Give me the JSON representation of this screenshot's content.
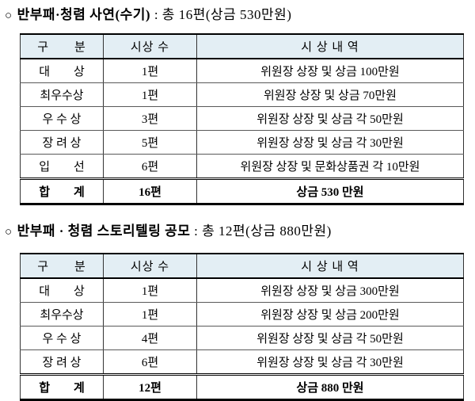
{
  "colors": {
    "header_bg": "#e3eef4",
    "border": "#000000",
    "text": "#000000"
  },
  "sections": [
    {
      "bullet": "○",
      "title_bold": "반부패·청렴 사연(수기)",
      "title_rest": " : 총 16편(상금 530만원)",
      "table": {
        "headers": [
          "구　　분",
          "시상 수",
          "시 상 내 역"
        ],
        "rows": [
          [
            "대　　상",
            "1편",
            "위원장 상장 및 상금 100만원"
          ],
          [
            "최우수상",
            "1편",
            "위원장 상장 및 상금 70만원"
          ],
          [
            "우 수 상",
            "3편",
            "위원장 상장 및 상금 각 50만원"
          ],
          [
            "장 려 상",
            "5편",
            "위원장 상장 및 상금 각 30만원"
          ],
          [
            "입　　선",
            "6편",
            "위원장 상장 및 문화상품권 각 10만원"
          ]
        ],
        "total": [
          "합　　계",
          "16편",
          "상금 530 만원"
        ]
      }
    },
    {
      "bullet": "○",
      "title_bold": "반부패 · 청렴 스토리텔링 공모",
      "title_rest": " : 총 12편(상금 880만원)",
      "table": {
        "headers": [
          "구　　분",
          "시상 수",
          "시 상 내 역"
        ],
        "rows": [
          [
            "대　　상",
            "1편",
            "위원장 상장 및 상금 300만원"
          ],
          [
            "최우수상",
            "1편",
            "위원장 상장 및 상금 200만원"
          ],
          [
            "우 수 상",
            "4편",
            "위원장 상장 및 상금 각 50만원"
          ],
          [
            "장 려 상",
            "6편",
            "위원장 상장 및 상금 각 30만원"
          ]
        ],
        "total": [
          "합　　계",
          "12편",
          "상금 880 만원"
        ]
      }
    }
  ]
}
